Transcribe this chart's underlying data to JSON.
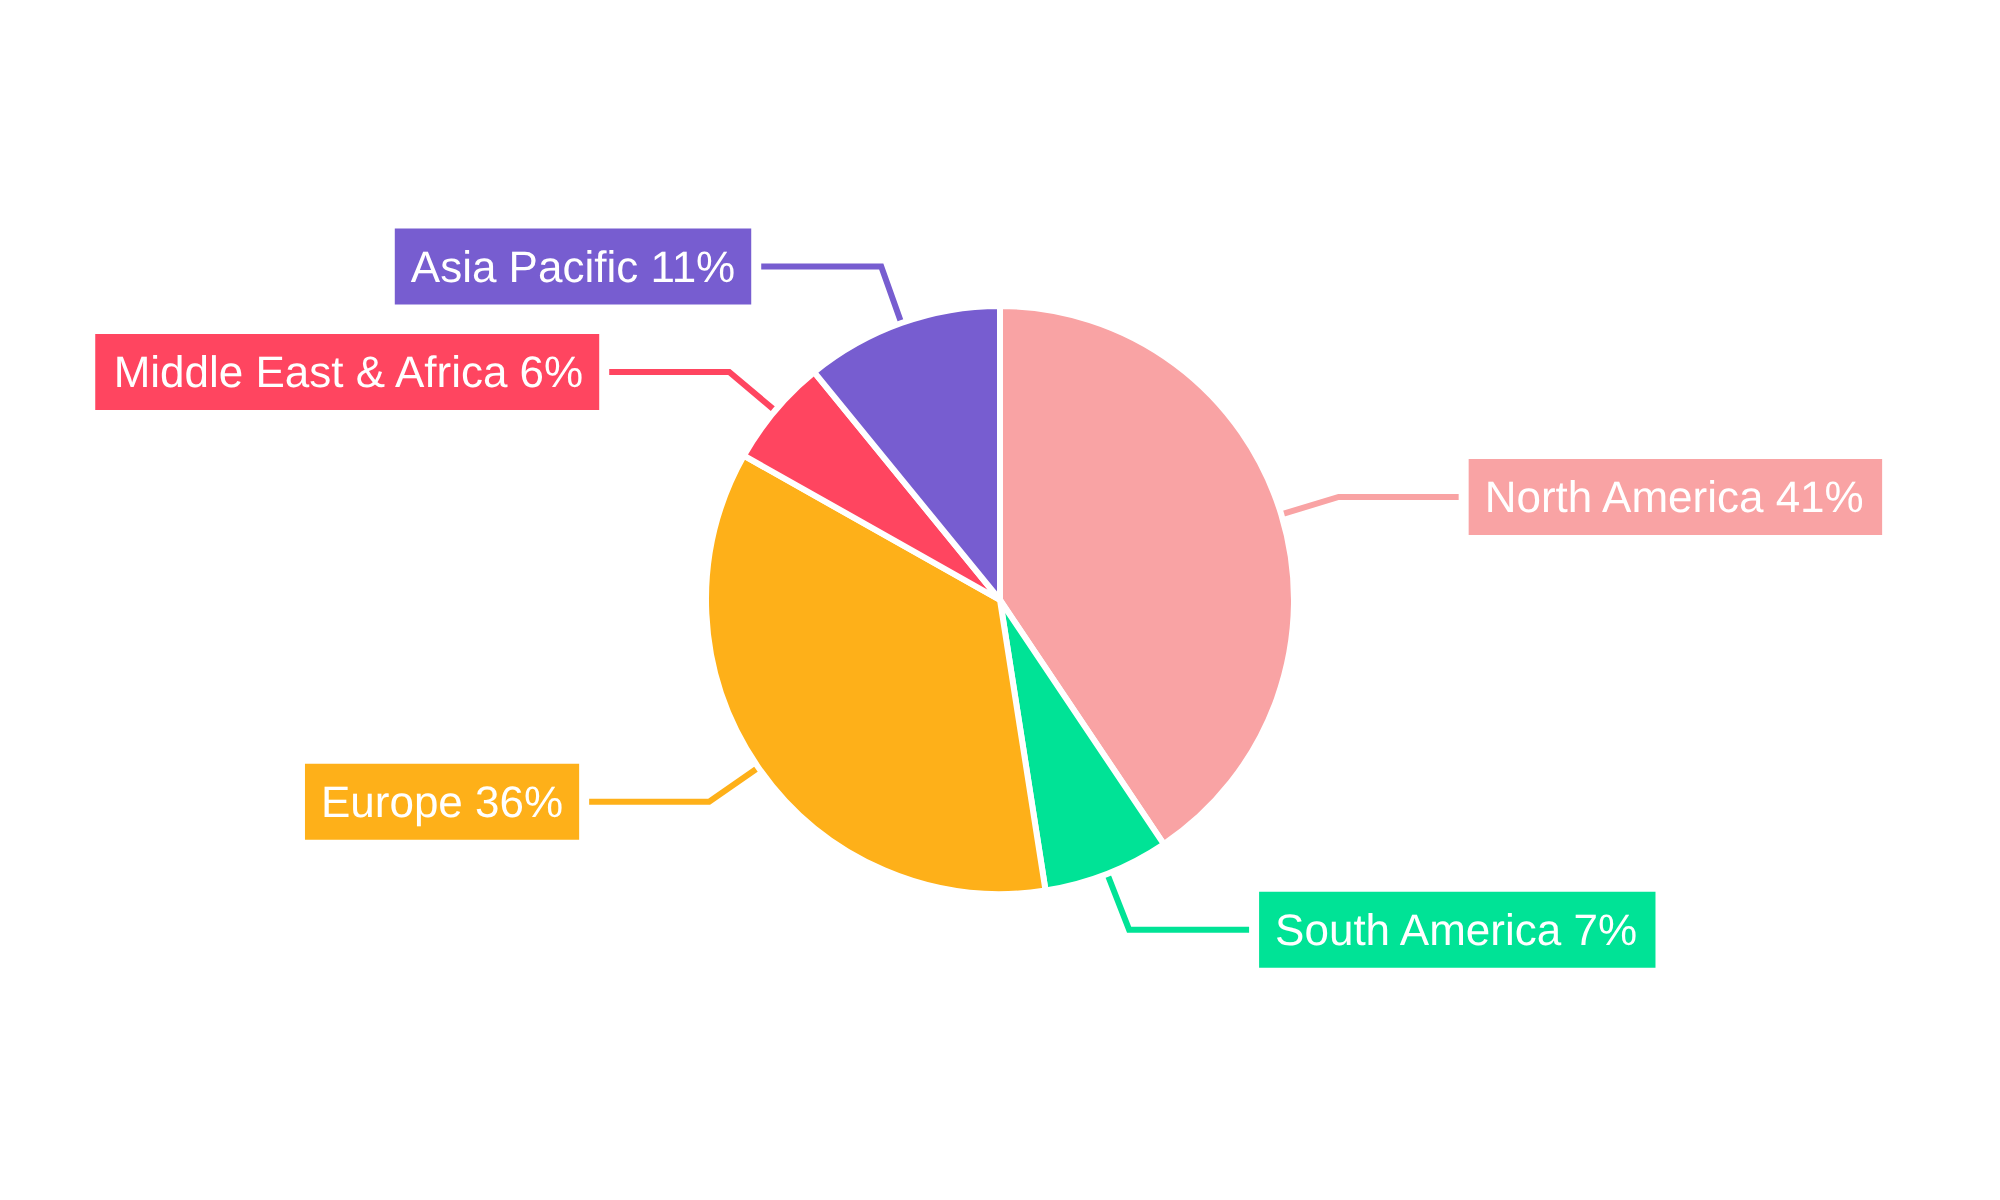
{
  "chart_data": {
    "type": "pie",
    "categories": [
      "North America",
      "South America",
      "Europe",
      "Middle East & Africa",
      "Asia Pacific"
    ],
    "values": [
      41,
      7,
      36,
      6,
      11
    ],
    "value_labels": [
      "41%",
      "7%",
      "36%",
      "6%",
      "11%"
    ],
    "colors": [
      "#f9a3a4",
      "#00e396",
      "#feb019",
      "#ff4560",
      "#775dd0"
    ],
    "legend": false
  }
}
